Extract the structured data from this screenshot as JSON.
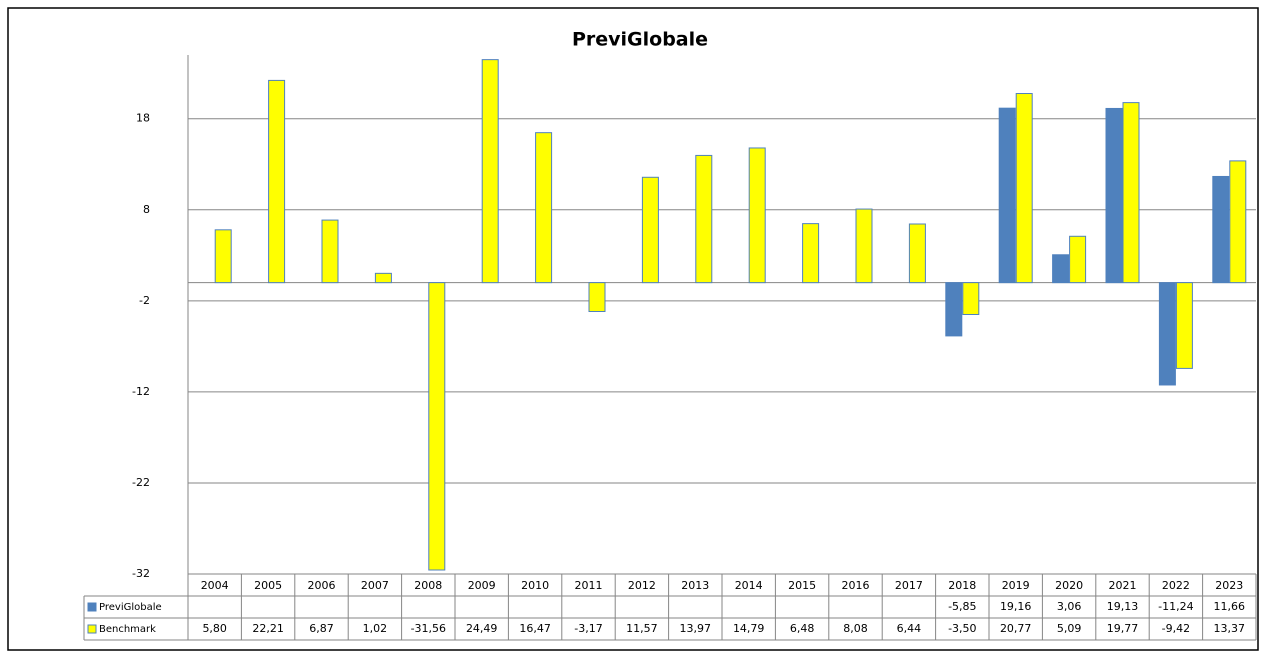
{
  "chart_data": {
    "type": "bar",
    "title": "PreviGlobale",
    "categories": [
      "2004",
      "2005",
      "2006",
      "2007",
      "2008",
      "2009",
      "2010",
      "2011",
      "2012",
      "2013",
      "2014",
      "2015",
      "2016",
      "2017",
      "2018",
      "2019",
      "2020",
      "2021",
      "2022",
      "2023"
    ],
    "series": [
      {
        "name": "PreviGlobale",
        "color": "#4f81bd",
        "values": [
          null,
          null,
          null,
          null,
          null,
          null,
          null,
          null,
          null,
          null,
          null,
          null,
          null,
          null,
          -5.85,
          19.16,
          3.06,
          19.13,
          -11.24,
          11.66
        ],
        "value_labels": [
          null,
          null,
          null,
          null,
          null,
          null,
          null,
          null,
          null,
          null,
          null,
          null,
          null,
          null,
          "-5,85",
          "19,16",
          "3,06",
          "19,13",
          "-11,24",
          "11,66"
        ]
      },
      {
        "name": "Benchmark",
        "color": "#ffff00",
        "values": [
          5.8,
          22.21,
          6.87,
          1.02,
          -31.56,
          24.49,
          16.47,
          -3.17,
          11.57,
          13.97,
          14.79,
          6.48,
          8.08,
          6.44,
          -3.5,
          20.77,
          5.09,
          19.77,
          -9.42,
          13.37
        ],
        "value_labels": [
          "5,80",
          "22,21",
          "6,87",
          "1,02",
          "-31,56",
          "24,49",
          "16,47",
          "-3,17",
          "11,57",
          "13,97",
          "14,79",
          "6,48",
          "8,08",
          "6,44",
          "-3,50",
          "20,77",
          "5,09",
          "19,77",
          "-9,42",
          "13,37"
        ]
      }
    ],
    "ylim": [
      -32,
      25
    ],
    "yticks": [
      -32,
      -22,
      -12,
      -2,
      8,
      18
    ],
    "grid": true,
    "data_table": true
  }
}
